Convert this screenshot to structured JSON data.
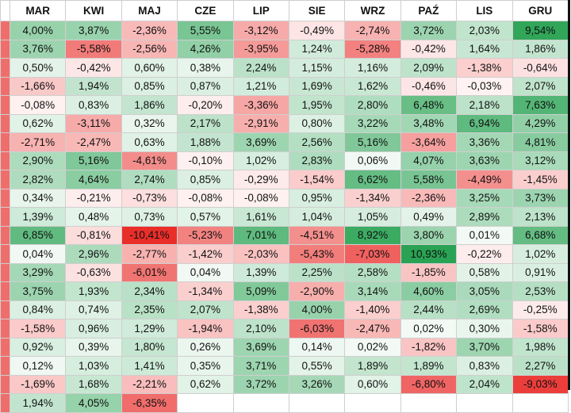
{
  "columns": [
    "",
    "MAR",
    "KWI",
    "MAJ",
    "CZE",
    "LIP",
    "SIE",
    "WRZ",
    "PAŹ",
    "LIS",
    "GRU"
  ],
  "rows": [
    [
      "",
      "4,00%",
      "3,87%",
      "-2,36%",
      "5,55%",
      "-3,12%",
      "-0,49%",
      "-2,74%",
      "3,72%",
      "2,03%",
      "9,54%"
    ],
    [
      "",
      "3,76%",
      "-5,58%",
      "-2,56%",
      "4,26%",
      "-3,95%",
      "1,24%",
      "-5,28%",
      "-0,42%",
      "1,64%",
      "1,86%"
    ],
    [
      "",
      "0,50%",
      "-0,42%",
      "0,60%",
      "0,38%",
      "2,24%",
      "1,15%",
      "1,16%",
      "2,09%",
      "-1,38%",
      "-0,64%"
    ],
    [
      "",
      "-1,66%",
      "1,94%",
      "0,85%",
      "0,87%",
      "1,21%",
      "1,69%",
      "1,62%",
      "-0,46%",
      "-0,03%",
      "2,07%"
    ],
    [
      "",
      "-0,08%",
      "0,83%",
      "1,86%",
      "-0,20%",
      "-3,36%",
      "1,95%",
      "2,80%",
      "6,48%",
      "2,18%",
      "7,63%"
    ],
    [
      "",
      "0,62%",
      "-3,11%",
      "0,32%",
      "2,17%",
      "-2,91%",
      "0,80%",
      "3,22%",
      "3,48%",
      "6,94%",
      "4,29%"
    ],
    [
      "",
      "-2,71%",
      "-2,47%",
      "0,63%",
      "1,88%",
      "3,69%",
      "2,56%",
      "5,16%",
      "-3,64%",
      "3,36%",
      "4,81%"
    ],
    [
      "",
      "2,90%",
      "5,16%",
      "-4,61%",
      "-0,10%",
      "1,02%",
      "2,83%",
      "0,06%",
      "4,07%",
      "3,63%",
      "3,12%"
    ],
    [
      "",
      "2,82%",
      "4,64%",
      "2,74%",
      "0,85%",
      "-0,29%",
      "-1,54%",
      "6,62%",
      "5,58%",
      "-4,49%",
      "-1,45%"
    ],
    [
      "",
      "0,34%",
      "-0,21%",
      "-0,73%",
      "-0,08%",
      "-0,08%",
      "0,95%",
      "-1,34%",
      "-2,36%",
      "3,25%",
      "3,73%"
    ],
    [
      "",
      "1,39%",
      "0,48%",
      "0,73%",
      "0,57%",
      "1,61%",
      "1,04%",
      "1,05%",
      "0,49%",
      "2,89%",
      "2,13%"
    ],
    [
      "",
      "6,85%",
      "-0,81%",
      "-10,41%",
      "-5,23%",
      "7,01%",
      "-4,51%",
      "8,92%",
      "3,80%",
      "0,01%",
      "6,68%"
    ],
    [
      "",
      "0,04%",
      "2,96%",
      "-2,77%",
      "-1,42%",
      "-2,03%",
      "-5,43%",
      "-7,03%",
      "10,93%",
      "-0,22%",
      "1,02%"
    ],
    [
      "",
      "3,29%",
      "-0,63%",
      "-6,01%",
      "0,04%",
      "1,39%",
      "2,25%",
      "2,58%",
      "-1,85%",
      "0,58%",
      "0,91%"
    ],
    [
      "",
      "3,75%",
      "1,93%",
      "2,34%",
      "-1,34%",
      "5,09%",
      "-2,90%",
      "3,14%",
      "4,60%",
      "3,05%",
      "2,53%"
    ],
    [
      "",
      "0,84%",
      "0,74%",
      "2,35%",
      "2,07%",
      "-1,38%",
      "4,00%",
      "-1,40%",
      "2,44%",
      "2,69%",
      "-0,25%"
    ],
    [
      "",
      "-1,58%",
      "0,96%",
      "1,29%",
      "-1,94%",
      "2,10%",
      "-6,03%",
      "-2,47%",
      "0,02%",
      "0,30%",
      "-1,58%"
    ],
    [
      "",
      "0,92%",
      "0,39%",
      "1,80%",
      "0,26%",
      "3,69%",
      "0,14%",
      "0,02%",
      "-1,82%",
      "3,70%",
      "1,98%"
    ],
    [
      "",
      "0,12%",
      "1,03%",
      "1,41%",
      "0,35%",
      "3,71%",
      "0,55%",
      "1,89%",
      "1,89%",
      "0,83%",
      "2,27%"
    ],
    [
      "",
      "-1,69%",
      "1,68%",
      "-2,21%",
      "0,62%",
      "3,72%",
      "3,26%",
      "0,60%",
      "-6,80%",
      "2,04%",
      "-9,03%"
    ],
    [
      "",
      "1,94%",
      "4,05%",
      "-6,35%",
      "",
      "",
      "",
      "",
      "",
      "",
      ""
    ]
  ],
  "colors": {
    "positive_max": "#1e9e4a",
    "negative_max": "#e8231f",
    "neutral": "#ffffff",
    "border": "#cfcfcf",
    "edge_rule": "#111111"
  }
}
